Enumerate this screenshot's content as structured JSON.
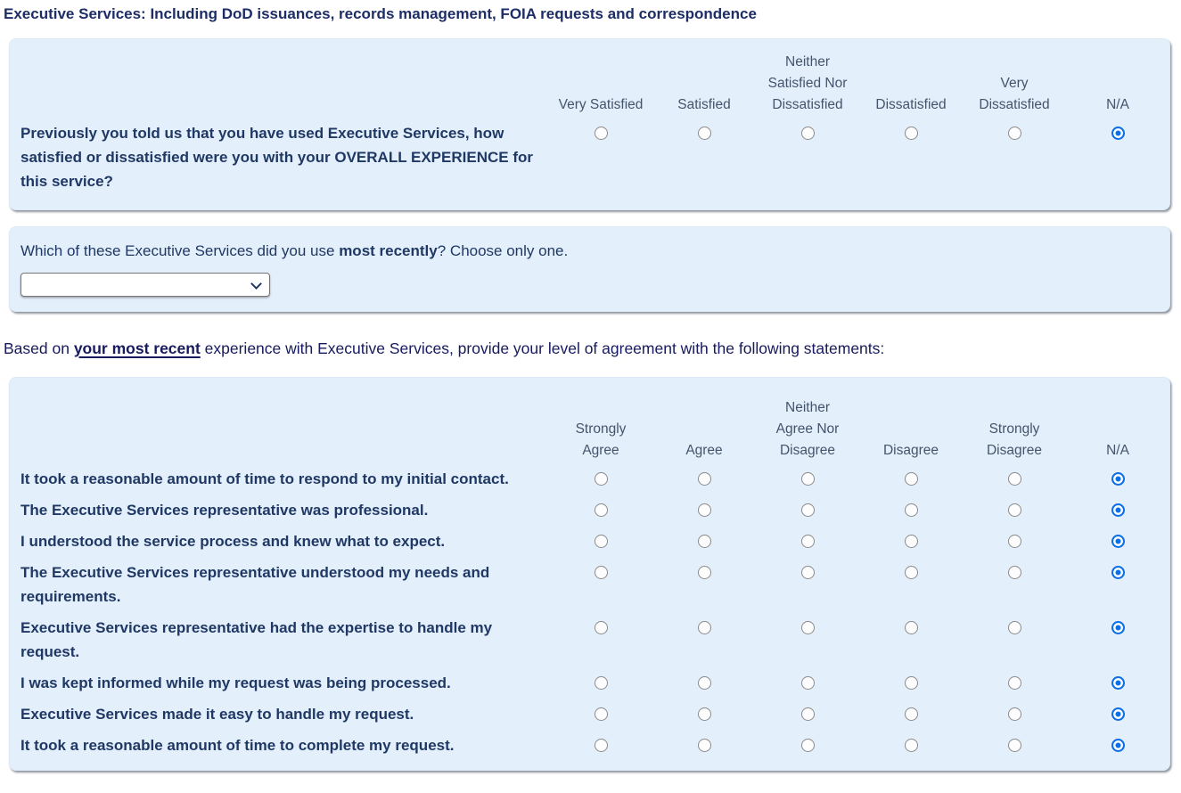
{
  "page": {
    "heading": "Executive Services: Including DoD issuances, records management, FOIA requests and correspondence"
  },
  "colors": {
    "panel_background": "#e4effc",
    "heading_text": "#1d2d66",
    "question_text": "#1f3864",
    "column_header_text": "#44546a",
    "radio_selected_blue": "#0d6fe8"
  },
  "satisfaction_matrix": {
    "columns": [
      "Very Satisfied",
      "Satisfied",
      "Neither\nSatisfied Nor\nDissatisfied",
      "Dissatisfied",
      "Very\nDissatisfied",
      "N/A"
    ],
    "rows": [
      {
        "label": "Previously you told us that you have used Executive Services, how satisfied or dissatisfied were you with your OVERALL EXPERIENCE for this service?",
        "selected": "N/A"
      }
    ]
  },
  "service_question": {
    "prefix": "Which of these Executive Services did you use ",
    "emphasis": "most recently",
    "suffix": "? Choose only one.",
    "dropdown": {
      "selected_value": ""
    }
  },
  "agreement_intro": {
    "prefix": "Based on ",
    "emphasis": "your most recent",
    "suffix": " experience with Executive Services, provide your level of agreement with the following statements:"
  },
  "agreement_matrix": {
    "columns": [
      "Strongly\nAgree",
      "Agree",
      "Neither\nAgree Nor\nDisagree",
      "Disagree",
      "Strongly\nDisagree",
      "N/A"
    ],
    "rows": [
      {
        "label": "It took a reasonable amount of time to respond to my initial contact.",
        "selected": "N/A"
      },
      {
        "label": "The Executive Services representative was professional.",
        "selected": "N/A"
      },
      {
        "label": "I understood the service process and knew what to expect.",
        "selected": "N/A"
      },
      {
        "label": "The Executive Services representative understood my needs and requirements.",
        "selected": "N/A"
      },
      {
        "label": "Executive Services representative had the expertise to handle my request.",
        "selected": "N/A"
      },
      {
        "label": "I was kept informed while my request was being processed.",
        "selected": "N/A"
      },
      {
        "label": "Executive Services made it easy to handle my request.",
        "selected": "N/A"
      },
      {
        "label": "It took a reasonable amount of time to complete my request.",
        "selected": "N/A"
      }
    ]
  }
}
